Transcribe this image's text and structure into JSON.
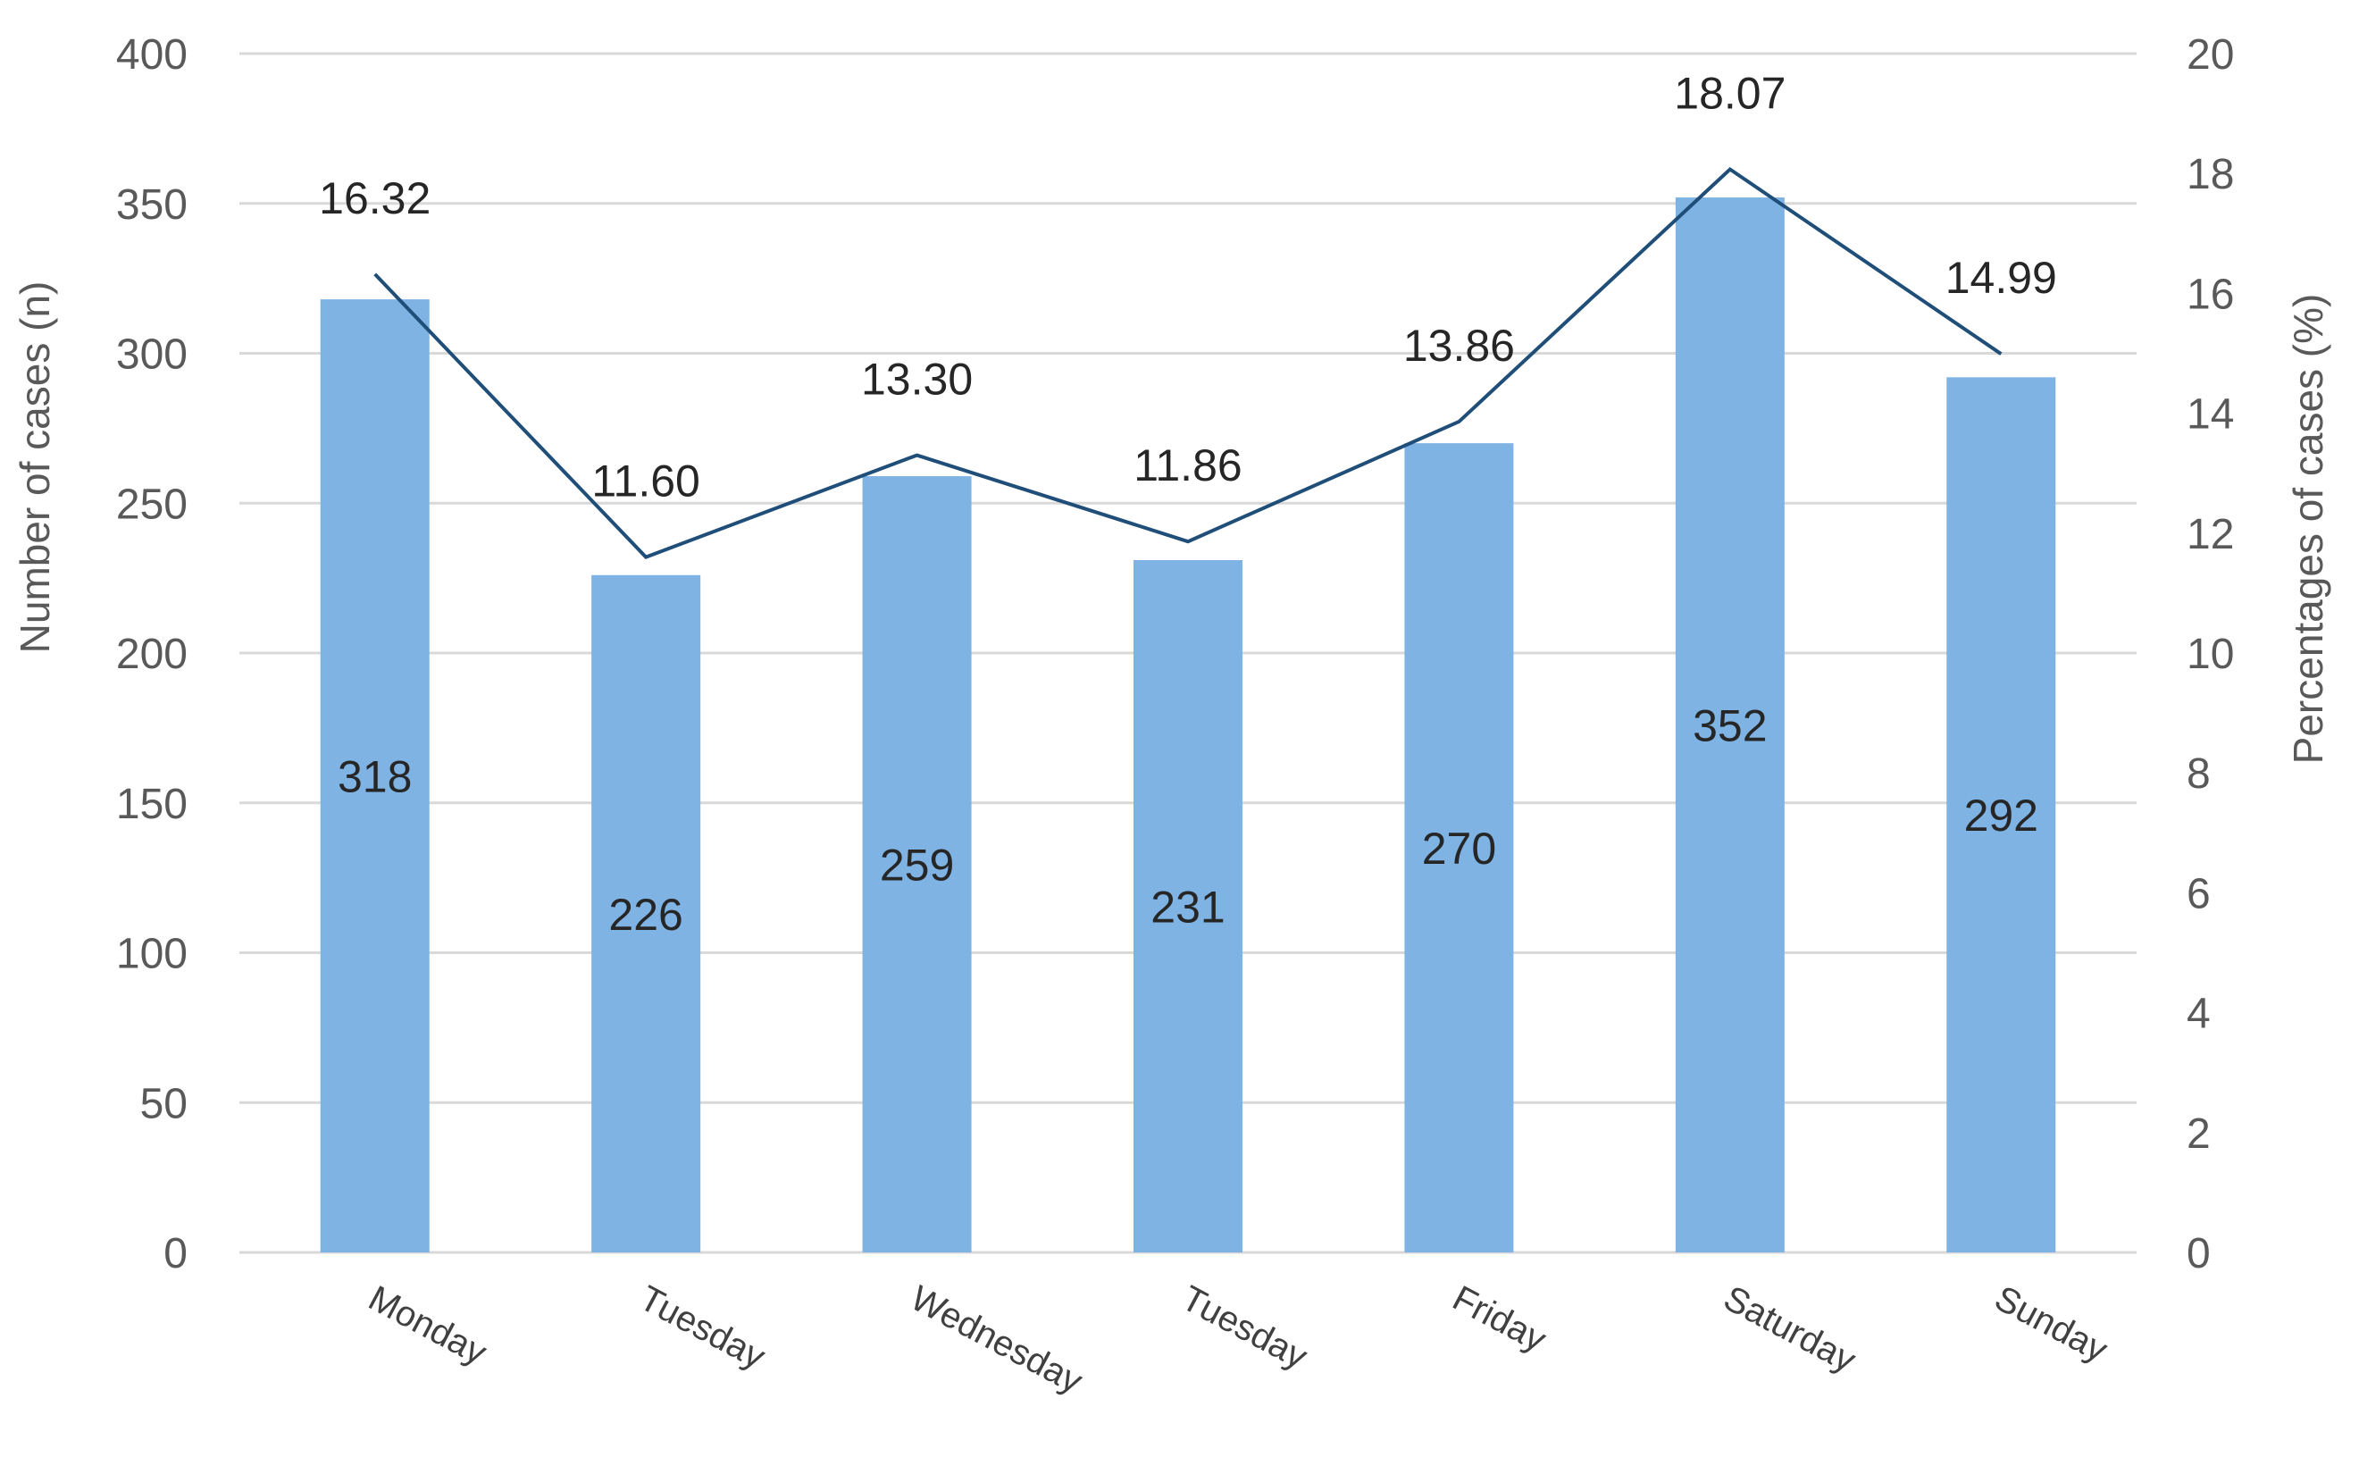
{
  "chart_data": {
    "type": "bar",
    "categories": [
      "Monday",
      "Tuesday",
      "Wednesday",
      "Tuesday",
      "Friday",
      "Saturday",
      "Sunday"
    ],
    "series": [
      {
        "type": "bar",
        "axis": "left",
        "values": [
          318,
          226,
          259,
          231,
          270,
          352,
          292
        ],
        "color": "#7eb3e4",
        "data_labels": [
          "318",
          "226",
          "259",
          "231",
          "270",
          "352",
          "292"
        ]
      },
      {
        "type": "line",
        "axis": "right",
        "values": [
          16.32,
          11.6,
          13.3,
          11.86,
          13.86,
          18.07,
          14.99
        ],
        "color": "#1f4e79",
        "data_labels": [
          "16.32",
          "11.60",
          "13.30",
          "11.86",
          "13.86",
          "18.07",
          "14.99"
        ]
      }
    ],
    "ylabel": "Number of cases (n)",
    "y2label": "Percentages of cases (%)",
    "ylim": [
      0,
      400
    ],
    "y2lim": [
      0,
      20
    ],
    "yticks": [
      "0",
      "50",
      "100",
      "150",
      "200",
      "250",
      "300",
      "350",
      "400"
    ],
    "y2ticks": [
      "0",
      "2",
      "4",
      "6",
      "8",
      "10",
      "12",
      "14",
      "16",
      "18",
      "20"
    ],
    "grid": true,
    "legend": "none"
  }
}
